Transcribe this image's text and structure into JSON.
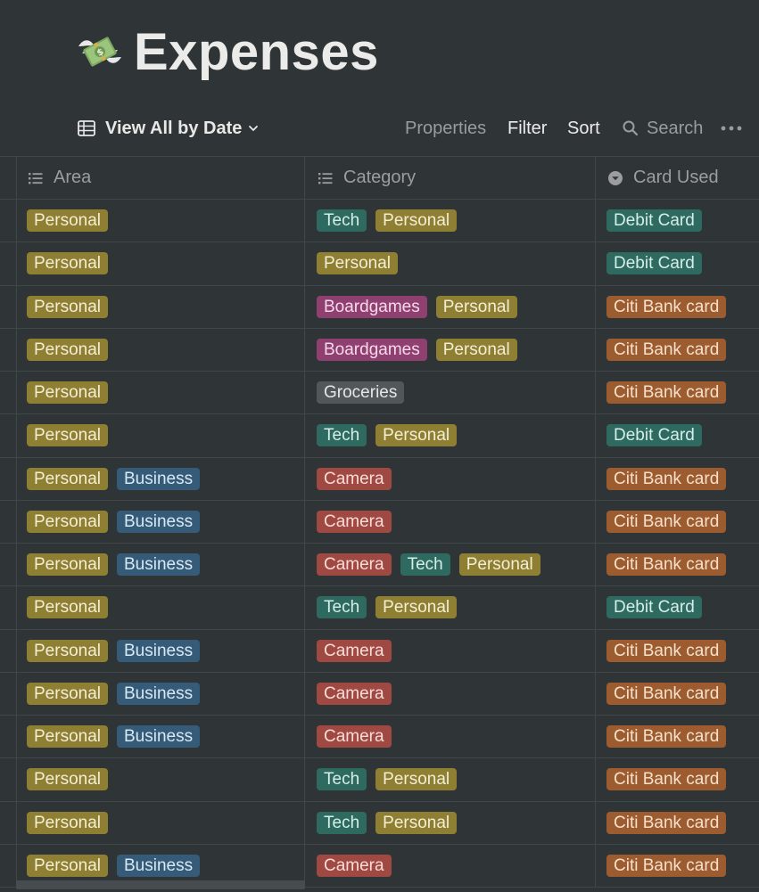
{
  "page": {
    "title": "Expenses",
    "icon": "money-with-wings-icon"
  },
  "toolbar": {
    "view_label": "View All by Date",
    "properties_label": "Properties",
    "filter_label": "Filter",
    "sort_label": "Sort",
    "search_label": "Search"
  },
  "columns": {
    "area": "Area",
    "category": "Category",
    "card": "Card Used"
  },
  "colors": {
    "background": "#2f3437",
    "Personal": "#8e7f33",
    "Business": "#365b78",
    "Tech": "#2e6a5f",
    "Boardgames": "#8f3f70",
    "Groceries": "#52575b",
    "Camera": "#a04943",
    "Debit Card": "#2e6a5f",
    "Citi Bank card": "#9c5c2f"
  },
  "rows": [
    {
      "area": [
        "Personal"
      ],
      "category": [
        "Tech",
        "Personal"
      ],
      "card": "Debit Card"
    },
    {
      "area": [
        "Personal"
      ],
      "category": [
        "Personal"
      ],
      "card": "Debit Card"
    },
    {
      "area": [
        "Personal"
      ],
      "category": [
        "Boardgames",
        "Personal"
      ],
      "card": "Citi Bank card"
    },
    {
      "area": [
        "Personal"
      ],
      "category": [
        "Boardgames",
        "Personal"
      ],
      "card": "Citi Bank card"
    },
    {
      "area": [
        "Personal"
      ],
      "category": [
        "Groceries"
      ],
      "card": "Citi Bank card"
    },
    {
      "area": [
        "Personal"
      ],
      "category": [
        "Tech",
        "Personal"
      ],
      "card": "Debit Card"
    },
    {
      "area": [
        "Personal",
        "Business"
      ],
      "category": [
        "Camera"
      ],
      "card": "Citi Bank card"
    },
    {
      "area": [
        "Personal",
        "Business"
      ],
      "category": [
        "Camera"
      ],
      "card": "Citi Bank card"
    },
    {
      "area": [
        "Personal",
        "Business"
      ],
      "category": [
        "Camera",
        "Tech",
        "Personal"
      ],
      "card": "Citi Bank card"
    },
    {
      "area": [
        "Personal"
      ],
      "category": [
        "Tech",
        "Personal"
      ],
      "card": "Debit Card"
    },
    {
      "area": [
        "Personal",
        "Business"
      ],
      "category": [
        "Camera"
      ],
      "card": "Citi Bank card"
    },
    {
      "area": [
        "Personal",
        "Business"
      ],
      "category": [
        "Camera"
      ],
      "card": "Citi Bank card"
    },
    {
      "area": [
        "Personal",
        "Business"
      ],
      "category": [
        "Camera"
      ],
      "card": "Citi Bank card"
    },
    {
      "area": [
        "Personal"
      ],
      "category": [
        "Tech",
        "Personal"
      ],
      "card": "Citi Bank card"
    },
    {
      "area": [
        "Personal"
      ],
      "category": [
        "Tech",
        "Personal"
      ],
      "card": "Citi Bank card"
    },
    {
      "area": [
        "Personal",
        "Business"
      ],
      "category": [
        "Camera"
      ],
      "card": "Citi Bank card"
    }
  ]
}
